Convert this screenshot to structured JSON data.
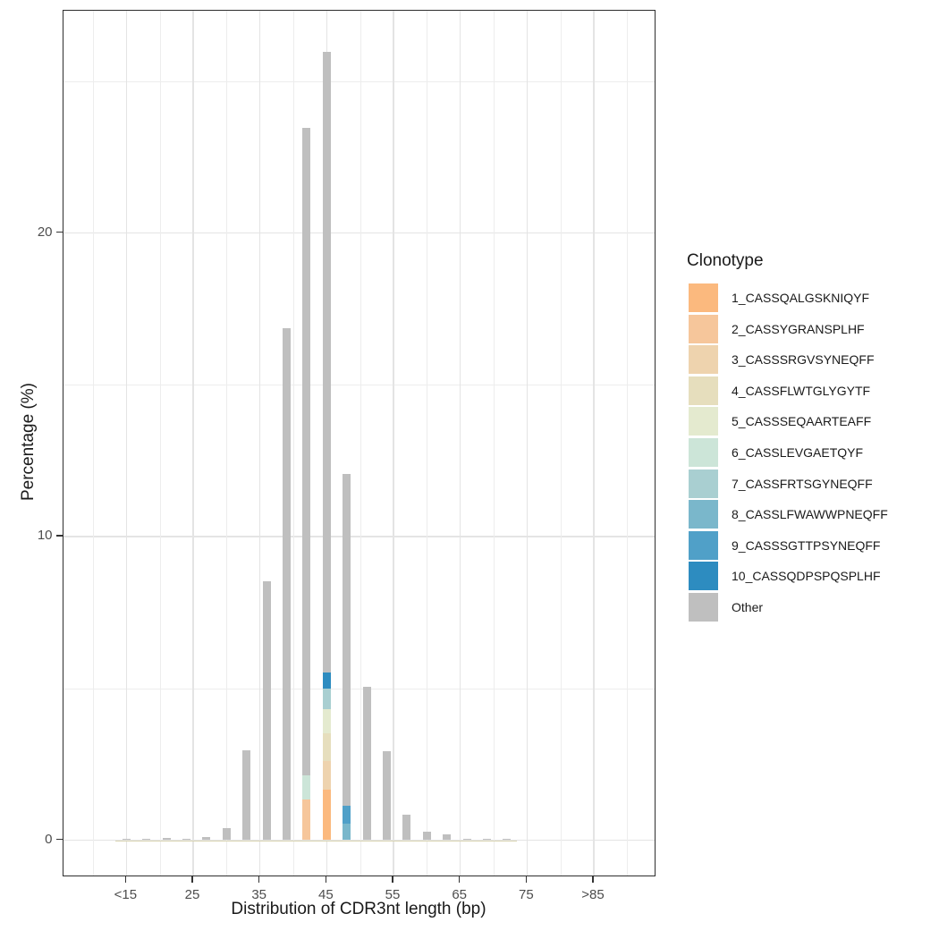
{
  "chart_data": {
    "type": "bar",
    "stacked": true,
    "title": "",
    "xlabel": "Distribution of CDR3nt length (bp)",
    "ylabel": "Percentage (%)",
    "grid": true,
    "xlim": [
      5.5,
      94.3
    ],
    "ylim": [
      -1.2,
      27.3
    ],
    "x_ticks": [
      {
        "value": 15,
        "label": "<15"
      },
      {
        "value": 25,
        "label": "25"
      },
      {
        "value": 35,
        "label": "35"
      },
      {
        "value": 45,
        "label": "45"
      },
      {
        "value": 55,
        "label": "55"
      },
      {
        "value": 65,
        "label": "65"
      },
      {
        "value": 75,
        "label": "75"
      },
      {
        "value": 85,
        "label": ">85"
      }
    ],
    "y_ticks": [
      {
        "value": 0,
        "label": "0"
      },
      {
        "value": 10,
        "label": "10"
      },
      {
        "value": 20,
        "label": "20"
      }
    ],
    "x_minor_gridlines": [
      10,
      20,
      30,
      40,
      50,
      60,
      70,
      80,
      90
    ],
    "y_minor_gridlines": [
      5,
      15,
      25
    ],
    "legend": {
      "title": "Clonotype",
      "position": "right",
      "items": [
        {
          "label": "1_CASSQALGSKNIQYF",
          "color": "#FBB97E"
        },
        {
          "label": "2_CASSYGRANSPLHF",
          "color": "#F6C69B"
        },
        {
          "label": "3_CASSSRGVSYNEQFF",
          "color": "#EED3AE"
        },
        {
          "label": "4_CASSFLWTGLYGYTF",
          "color": "#E6DEBD"
        },
        {
          "label": "5_CASSSEQAARTEAFF",
          "color": "#E4EACF"
        },
        {
          "label": "6_CASSLEVGAETQYF",
          "color": "#CCE5D8"
        },
        {
          "label": "7_CASSFRTSGYNEQFF",
          "color": "#A9CFD1"
        },
        {
          "label": "8_CASSLFWAWWPNEQFF",
          "color": "#7AB7CB"
        },
        {
          "label": "9_CASSSGTTPSYNEQFF",
          "color": "#50A0C8"
        },
        {
          "label": "10_CASSQDPSPQSPLHF",
          "color": "#2D8CC0"
        },
        {
          "label": "Other",
          "color": "#BFBFBF"
        }
      ]
    },
    "bars": [
      {
        "length": 15,
        "segments": [
          {
            "key": "Other",
            "value": 0.03
          }
        ]
      },
      {
        "length": 18,
        "segments": [
          {
            "key": "Other",
            "value": 0.04
          }
        ]
      },
      {
        "length": 21,
        "segments": [
          {
            "key": "Other",
            "value": 0.07
          }
        ]
      },
      {
        "length": 24,
        "segments": [
          {
            "key": "Other",
            "value": 0.04
          }
        ]
      },
      {
        "length": 27,
        "segments": [
          {
            "key": "Other",
            "value": 0.1
          }
        ]
      },
      {
        "length": 30,
        "segments": [
          {
            "key": "Other",
            "value": 0.4
          }
        ]
      },
      {
        "length": 33,
        "segments": [
          {
            "key": "Other",
            "value": 2.97
          }
        ]
      },
      {
        "length": 36,
        "segments": [
          {
            "key": "Other",
            "value": 8.52
          }
        ]
      },
      {
        "length": 39,
        "segments": [
          {
            "key": "Other",
            "value": 16.85
          }
        ]
      },
      {
        "length": 42,
        "segments": [
          {
            "key": "2_CASSYGRANSPLHF",
            "value": 1.35
          },
          {
            "key": "6_CASSLEVGAETQYF",
            "value": 0.79
          },
          {
            "key": "Other",
            "value": 21.32
          }
        ]
      },
      {
        "length": 45,
        "segments": [
          {
            "key": "1_CASSQALGSKNIQYF",
            "value": 1.67
          },
          {
            "key": "3_CASSSRGVSYNEQFF",
            "value": 0.95
          },
          {
            "key": "4_CASSFLWTGLYGYTF",
            "value": 0.9
          },
          {
            "key": "5_CASSSEQAARTEAFF",
            "value": 0.8
          },
          {
            "key": "7_CASSFRTSGYNEQFF",
            "value": 0.68
          },
          {
            "key": "10_CASSQDPSPQSPLHF",
            "value": 0.51
          },
          {
            "key": "Other",
            "value": 20.46
          }
        ]
      },
      {
        "length": 48,
        "segments": [
          {
            "key": "8_CASSLFWAWWPNEQFF",
            "value": 0.54
          },
          {
            "key": "9_CASSSGTTPSYNEQFF",
            "value": 0.6
          },
          {
            "key": "Other",
            "value": 10.91
          }
        ]
      },
      {
        "length": 51,
        "segments": [
          {
            "key": "Other",
            "value": 5.05
          }
        ]
      },
      {
        "length": 54,
        "segments": [
          {
            "key": "Other",
            "value": 2.92
          }
        ]
      },
      {
        "length": 57,
        "segments": [
          {
            "key": "Other",
            "value": 0.85
          }
        ]
      },
      {
        "length": 60,
        "segments": [
          {
            "key": "Other",
            "value": 0.28
          }
        ]
      },
      {
        "length": 63,
        "segments": [
          {
            "key": "Other",
            "value": 0.19
          }
        ]
      },
      {
        "length": 66,
        "segments": [
          {
            "key": "Other",
            "value": 0.05
          }
        ]
      },
      {
        "length": 69,
        "segments": [
          {
            "key": "Other",
            "value": 0.03
          }
        ]
      },
      {
        "length": 72,
        "segments": [
          {
            "key": "Other",
            "value": 0.05
          }
        ]
      }
    ],
    "near_zero_strip": {
      "x_from": 14.0,
      "x_to": 72.9,
      "color": "#DAD5B3"
    }
  }
}
